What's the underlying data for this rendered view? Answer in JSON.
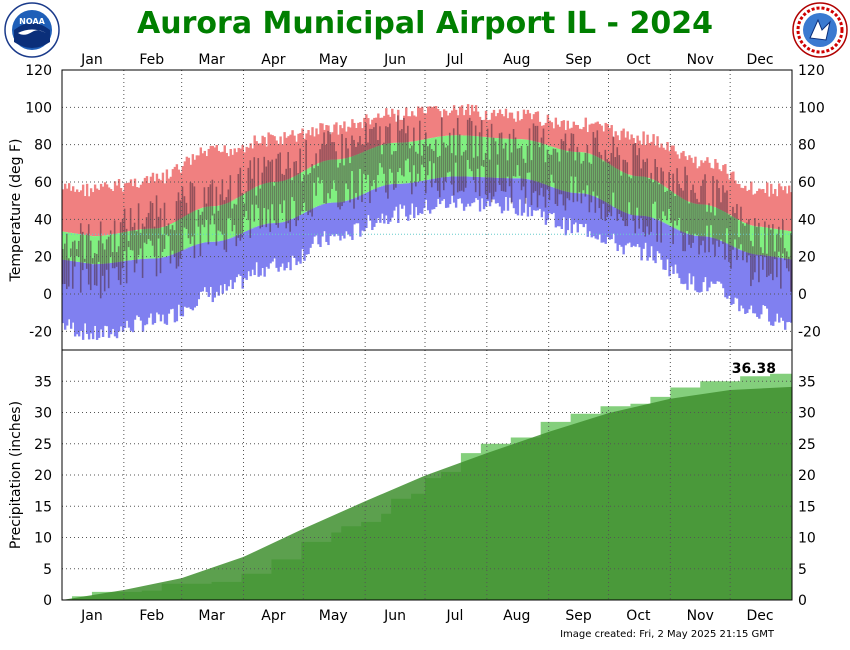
{
  "title": "Aurora Municipal Airport IL - 2024",
  "footer": "Image created: Fri, 2 May 2025 21:15 GMT",
  "logos": {
    "left": "NOAA",
    "right": "NATIONAL WEATHER SERVICE"
  },
  "colors": {
    "title": "#007f00",
    "record_high": "#f08080",
    "record_low": "#8080f0",
    "normal": "#80f080",
    "obs_range": "#4a2a3a",
    "precip_obs": "#84cf7c",
    "precip_normal": "#3f8f2f"
  },
  "chart_data": [
    {
      "type": "bar",
      "name": "temperature",
      "ylabel": "Temperature (deg F)",
      "ylim": [
        -30,
        120
      ],
      "yticks": [
        -20,
        0,
        20,
        40,
        60,
        80,
        100,
        120
      ],
      "months": [
        "Jan",
        "Feb",
        "Mar",
        "Apr",
        "May",
        "Jun",
        "Jul",
        "Aug",
        "Sep",
        "Oct",
        "Nov",
        "Dec"
      ],
      "grid": true,
      "normal_high": [
        31,
        35,
        47,
        60,
        72,
        81,
        85,
        83,
        76,
        63,
        48,
        36
      ],
      "normal_low": [
        16,
        19,
        28,
        38,
        49,
        59,
        63,
        62,
        54,
        42,
        31,
        21
      ],
      "record_high": [
        60,
        65,
        80,
        87,
        93,
        100,
        102,
        99,
        95,
        88,
        75,
        60
      ],
      "record_low": [
        -27,
        -20,
        -5,
        10,
        25,
        38,
        44,
        42,
        30,
        18,
        0,
        -15
      ],
      "observed_high": [
        28,
        42,
        52,
        66,
        77,
        85,
        84,
        81,
        79,
        70,
        55,
        32
      ],
      "observed_low": [
        8,
        20,
        32,
        42,
        55,
        62,
        62,
        59,
        52,
        40,
        32,
        14
      ]
    },
    {
      "type": "area",
      "name": "precipitation",
      "ylabel": "Precipitation (inches)",
      "ylim": [
        0,
        40
      ],
      "yticks": [
        0,
        5,
        10,
        15,
        20,
        25,
        30,
        35
      ],
      "months": [
        "Jan",
        "Feb",
        "Mar",
        "Apr",
        "May",
        "Jun",
        "Jul",
        "Aug",
        "Sep",
        "Oct",
        "Nov",
        "Dec"
      ],
      "grid": true,
      "total_label": "36.38",
      "observed_cumulative": [
        [
          0,
          0
        ],
        [
          5,
          0.6
        ],
        [
          15,
          1.3
        ],
        [
          40,
          1.5
        ],
        [
          50,
          2.6
        ],
        [
          75,
          2.9
        ],
        [
          90,
          4.2
        ],
        [
          105,
          6.5
        ],
        [
          120,
          9.3
        ],
        [
          135,
          10.8
        ],
        [
          140,
          11.8
        ],
        [
          150,
          12.5
        ],
        [
          160,
          13.8
        ],
        [
          165,
          16.2
        ],
        [
          175,
          17.0
        ],
        [
          182,
          19.5
        ],
        [
          190,
          20.5
        ],
        [
          200,
          23.5
        ],
        [
          210,
          25.0
        ],
        [
          225,
          26.0
        ],
        [
          240,
          28.5
        ],
        [
          255,
          29.8
        ],
        [
          270,
          31.0
        ],
        [
          285,
          31.4
        ],
        [
          295,
          32.5
        ],
        [
          305,
          34.0
        ],
        [
          320,
          35.0
        ],
        [
          340,
          35.8
        ],
        [
          355,
          36.2
        ],
        [
          366,
          36.38
        ]
      ],
      "normal_cumulative": [
        [
          0,
          0
        ],
        [
          31,
          1.6
        ],
        [
          60,
          3.5
        ],
        [
          91,
          6.9
        ],
        [
          121,
          11.4
        ],
        [
          152,
          15.8
        ],
        [
          182,
          19.9
        ],
        [
          213,
          23.5
        ],
        [
          244,
          26.9
        ],
        [
          274,
          29.9
        ],
        [
          305,
          32.2
        ],
        [
          335,
          33.6
        ],
        [
          366,
          34.1
        ]
      ]
    }
  ]
}
